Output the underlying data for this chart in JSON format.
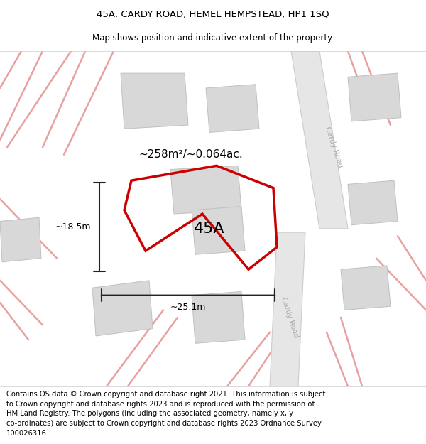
{
  "title": "45A, CARDY ROAD, HEMEL HEMPSTEAD, HP1 1SQ",
  "subtitle": "Map shows position and indicative extent of the property.",
  "title_fontsize": 9.5,
  "subtitle_fontsize": 8.5,
  "footer_text": "Contains OS data © Crown copyright and database right 2021. This information is subject to Crown copyright and database rights 2023 and is reproduced with the permission of\nHM Land Registry. The polygons (including the associated geometry, namely x, y\nco-ordinates) are subject to Crown copyright and database rights 2023 Ordnance Survey\n100026316.",
  "footer_fontsize": 7.2,
  "property_label": "45A",
  "area_label": "~258m²/~0.064ac.",
  "width_label": "~25.1m",
  "height_label": "~18.5m",
  "dimension_color": "#222222",
  "red_line_color": "#cc0000",
  "pink_road_color": "#e8a0a0",
  "block_color": "#d8d8d8",
  "block_outline_color": "#c0c0c0",
  "road_fill_color": "#e6e6e6",
  "road_edge_color": "#cccccc"
}
